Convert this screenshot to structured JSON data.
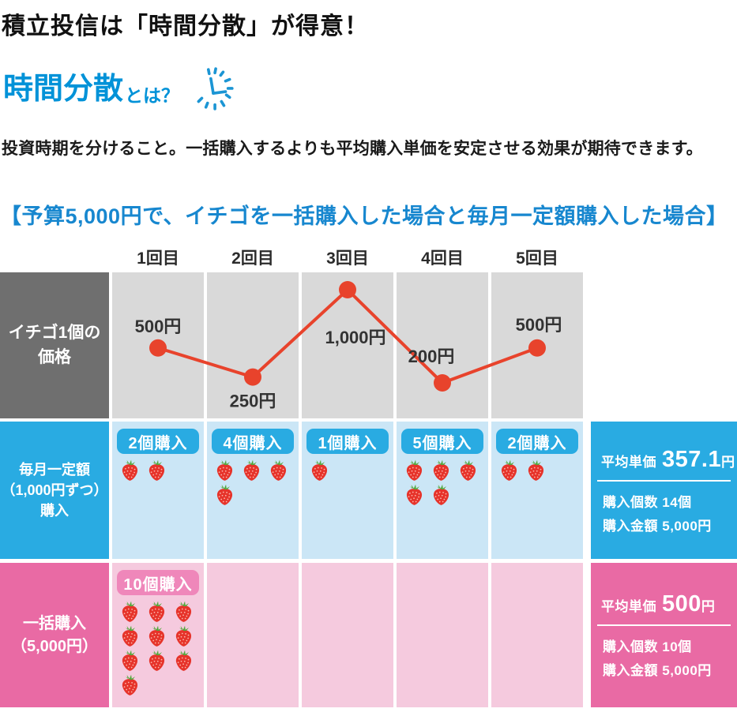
{
  "page_title": "積立投信は「時間分散」が得意！",
  "intro": {
    "term": "時間分散",
    "term_suffix": "とは？",
    "clock_icon": "clock-icon",
    "description": "投資時期を分けること。一括購入するよりも平均購入単価を安定させる効果が期待できます。"
  },
  "section_title": "【予算5,000円で、イチゴを一括購入した場合と毎月一定額購入した場合】",
  "table": {
    "column_headers": [
      "1回目",
      "2回目",
      "3回目",
      "4回目",
      "5回目"
    ],
    "price_row_label": "イチゴ1個の\n価格",
    "monthly_row": {
      "label": "毎月一定額\n（1,000円ずつ）\n購入",
      "badges": [
        "2個購入",
        "4個購入",
        "1個購入",
        "5個購入",
        "2個購入"
      ],
      "strawberry_counts": [
        2,
        4,
        1,
        5,
        2
      ],
      "summary": {
        "avg_label": "平均単価",
        "avg_value": "357.1",
        "avg_unit": "円",
        "count_label": "購入個数",
        "count_value": "14個",
        "amount_label": "購入金額",
        "amount_value": "5,000円"
      }
    },
    "lump_row": {
      "label": "一括購入\n（5,000円）",
      "badges": [
        "10個購入",
        "",
        "",
        "",
        ""
      ],
      "strawberry_counts": [
        10,
        0,
        0,
        0,
        0
      ],
      "summary": {
        "avg_label": "平均単価",
        "avg_value": "500",
        "avg_unit": "円",
        "count_label": "購入個数",
        "count_value": "10個",
        "amount_label": "購入金額",
        "amount_value": "5,000円"
      }
    }
  },
  "chart_data": {
    "type": "line",
    "title": "イチゴ1個の価格",
    "categories": [
      "1回目",
      "2回目",
      "3回目",
      "4回目",
      "5回目"
    ],
    "values": [
      500,
      250,
      1000,
      200,
      500
    ],
    "point_labels": [
      "500円",
      "250円",
      "1,000円",
      "200円",
      "500円"
    ],
    "xlabel": "",
    "ylabel": "イチゴ1個の価格（円）",
    "ylim": [
      0,
      1100
    ],
    "grid": false,
    "legend": "none",
    "line_color": "#e8432c"
  },
  "colors": {
    "heading_blue": "#0092d8",
    "section_blue": "#1787cf",
    "accent_blue": "#29abe2",
    "light_blue_cell": "#cbe6f6",
    "accent_pink": "#e96aa4",
    "light_pink_cell": "#f5cade",
    "badge_pink": "#ef87ba",
    "gray_label": "#6f6f6f",
    "gray_cell": "#d9d9d9",
    "line_red": "#e8432c",
    "strawberry_red": "#e6332a",
    "strawberry_green": "#54a73c"
  }
}
